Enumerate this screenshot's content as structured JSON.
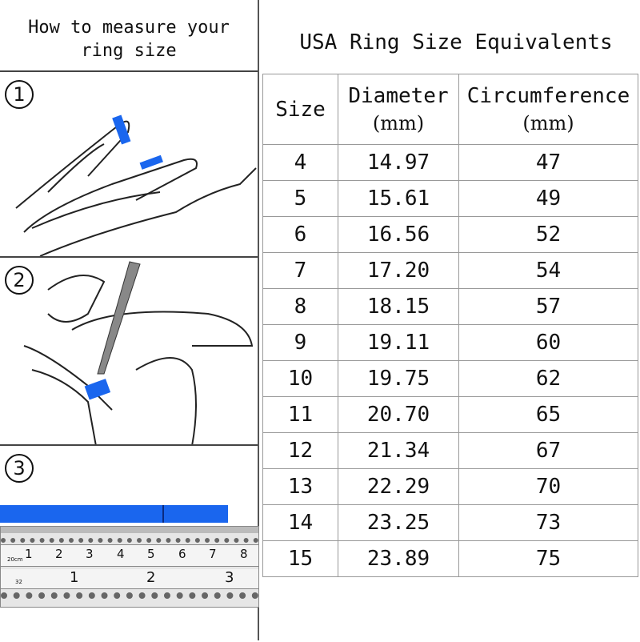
{
  "left": {
    "title_line1": "How to measure your",
    "title_line2": "ring size"
  },
  "steps": [
    "1",
    "2",
    "3"
  ],
  "ruler": {
    "top_labels": [
      "1",
      "2",
      "3",
      "4",
      "5",
      "6",
      "7",
      "8"
    ],
    "bottom_labels": [
      "1",
      "2",
      "3"
    ],
    "top_unit": "20cm",
    "bottom_unit": "32"
  },
  "colors": {
    "tape": "#1a66ee",
    "border": "#999999"
  },
  "table": {
    "title": "USA Ring Size Equivalents",
    "headers": [
      {
        "label": "Size",
        "unit": ""
      },
      {
        "label": "Diameter",
        "unit": "(mm)"
      },
      {
        "label": "Circumference",
        "unit": "(mm)"
      }
    ],
    "rows": [
      [
        "4",
        "14.97",
        "47"
      ],
      [
        "5",
        "15.61",
        "49"
      ],
      [
        "6",
        "16.56",
        "52"
      ],
      [
        "7",
        "17.20",
        "54"
      ],
      [
        "8",
        "18.15",
        "57"
      ],
      [
        "9",
        "19.11",
        "60"
      ],
      [
        "10",
        "19.75",
        "62"
      ],
      [
        "11",
        "20.70",
        "65"
      ],
      [
        "12",
        "21.34",
        "67"
      ],
      [
        "13",
        "22.29",
        "70"
      ],
      [
        "14",
        "23.25",
        "73"
      ],
      [
        "15",
        "23.89",
        "75"
      ]
    ]
  }
}
